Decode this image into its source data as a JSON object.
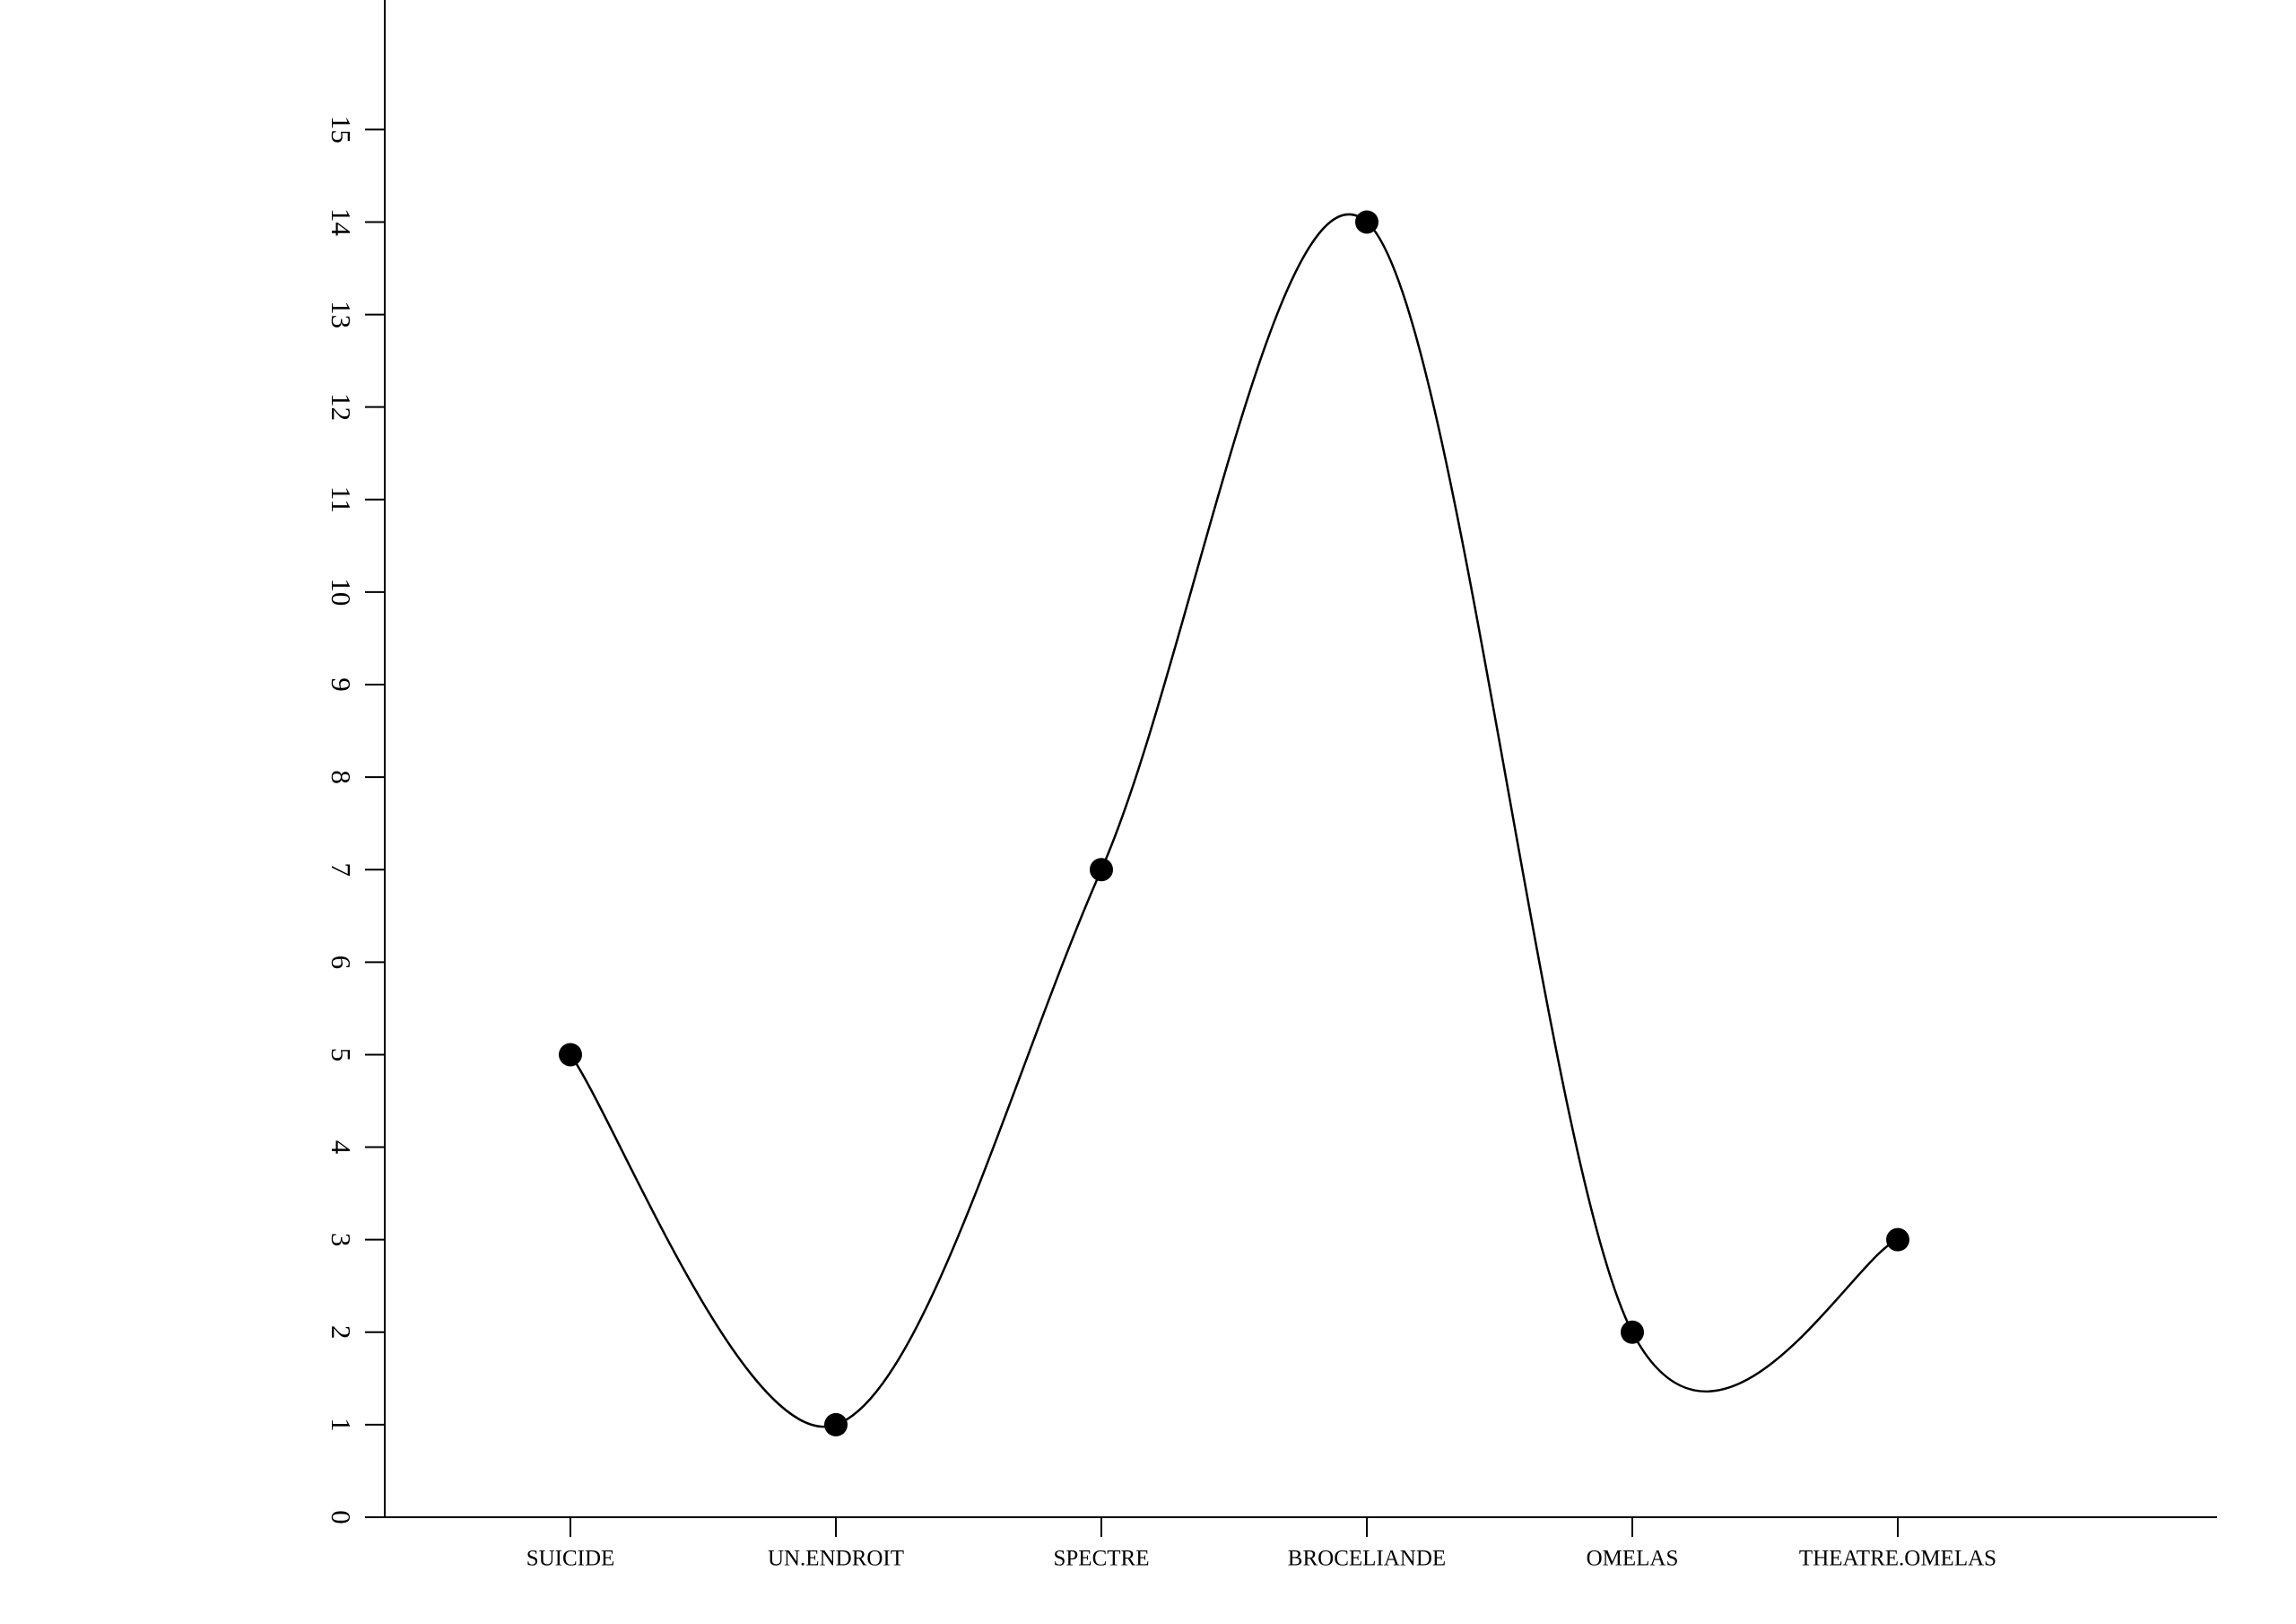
{
  "chart_data": {
    "type": "line",
    "categories": [
      "SUICIDE",
      "UN.ENDROIT",
      "SPECTRE",
      "BROCELIANDE",
      "OMELAS",
      "THEATRE.OMELAS"
    ],
    "values": [
      5,
      1,
      7,
      14,
      2,
      3
    ],
    "color": "#000000",
    "markers": true,
    "smooth": true,
    "ylim": [
      0,
      16.4
    ],
    "yticks": [
      0,
      1,
      2,
      3,
      4,
      5,
      6,
      7,
      8,
      9,
      10,
      11,
      12,
      13,
      14,
      15
    ],
    "grid": false
  }
}
